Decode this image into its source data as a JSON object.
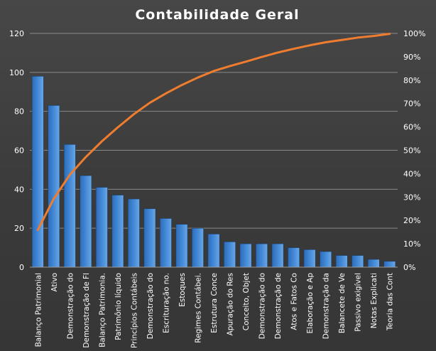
{
  "chart_data": {
    "type": "bar",
    "title": "Contabilidade  Geral",
    "categories": [
      "Balanço Patrimonial",
      "Ativo",
      "Demonstração do",
      "Demonstração de Fl",
      "Balanço Patrimonia.",
      "Patrimônio líquido",
      "Princípios Contábeis",
      "Demonstração do",
      "Escrituração no.",
      "Estoques",
      "Regimes Contábei.",
      "Estrutura Conce",
      "Apuração do Res",
      "Conceito, Objet",
      "Demonstração do",
      "Demonstração de",
      "Atos e Fatos Co",
      "Elaboração e Ap",
      "Demonstração da",
      "Balancete de Ve",
      "Passivo exigível",
      "Notas Explicati",
      "Teoria das Cont"
    ],
    "series": [
      {
        "values": [
          98,
          83,
          63,
          47,
          41,
          37,
          35,
          30,
          25,
          22,
          20,
          17,
          13,
          12,
          12,
          12,
          10,
          9,
          8,
          6,
          6,
          4,
          3
        ],
        "color": "#3f86d4"
      },
      {
        "type": "line",
        "axis": "right",
        "values": [
          15.9,
          29.3,
          39.5,
          47.1,
          53.8,
          59.8,
          65.4,
          70.3,
          74.3,
          77.9,
          81.1,
          83.9,
          86.0,
          87.9,
          89.9,
          91.8,
          93.4,
          94.9,
          96.2,
          97.2,
          98.2,
          98.9,
          99.8
        ],
        "color": "#ee7d2f"
      }
    ],
    "y_left": {
      "lim": [
        0,
        120
      ],
      "ticks": [
        "0",
        "20",
        "40",
        "60",
        "80",
        "100",
        "120"
      ]
    },
    "y_right": {
      "lim": [
        0,
        100
      ],
      "ticks": [
        "0%",
        "10%",
        "20%",
        "30%",
        "40%",
        "50%",
        "60%",
        "70%",
        "80%",
        "90%",
        "100%"
      ]
    },
    "grid": true,
    "legend": "none",
    "colors": {
      "background": "#3e3e3e",
      "grid": "#8a8a8a",
      "text": "#ffffff"
    }
  }
}
